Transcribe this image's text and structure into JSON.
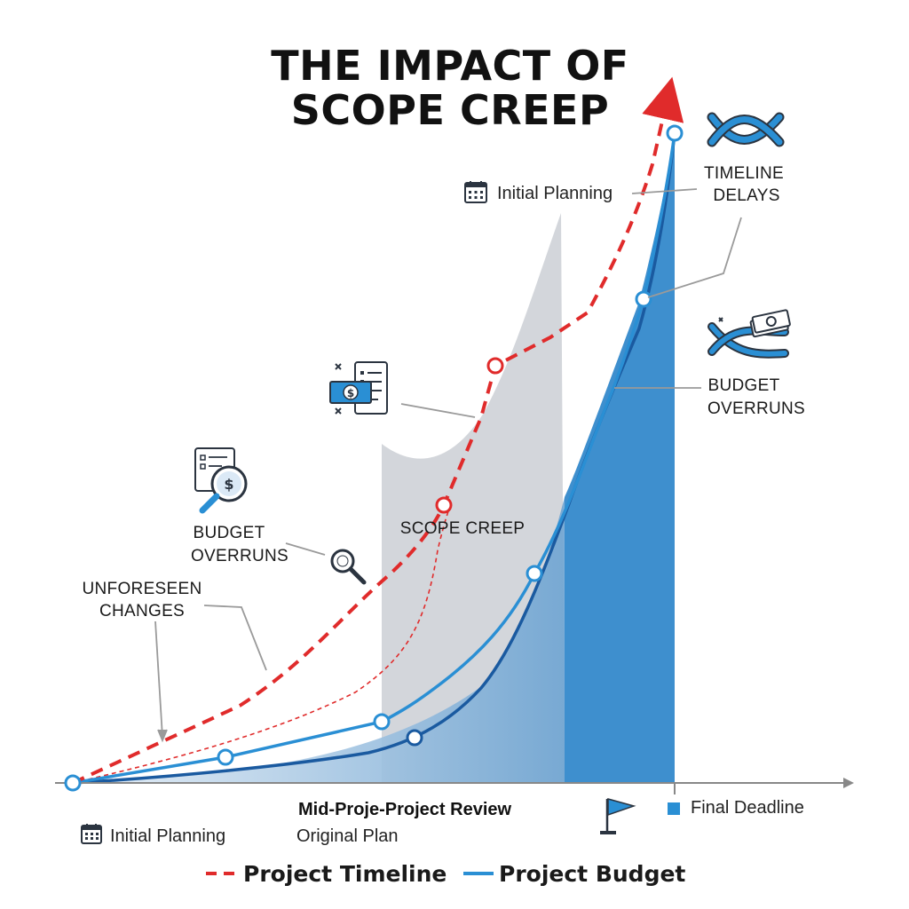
{
  "colors": {
    "timeline": "#e02b2b",
    "budget_line": "#2a8fd4",
    "budget_dark": "#1a5aa0",
    "fill_blue": "#3e8fce",
    "fill_grey": "#cfd3d9",
    "axis": "#888888",
    "icon": "#2b3440",
    "icon_accent": "#2a8fd4"
  },
  "chart_data": {
    "type": "line",
    "title": "THE IMPACT OF SCOPE CREEP",
    "title_lines": [
      "THE IMPACT OF",
      "SCOPE CREEP"
    ],
    "xlabel": "",
    "ylabel": "",
    "xlim": [
      0,
      10
    ],
    "ylim": [
      0,
      10
    ],
    "grid": false,
    "legend_position": "bottom",
    "series": [
      {
        "name": "Project Timeline",
        "style": "dashed",
        "x": [
          0,
          1.4,
          2.8,
          4.3,
          5.2,
          6.6,
          7.8,
          8.5
        ],
        "y": [
          0,
          0.7,
          1.8,
          3.3,
          4.1,
          6.6,
          7.3,
          9.8
        ]
      },
      {
        "name": "Project Budget",
        "style": "solid",
        "x": [
          0,
          2.3,
          4.4,
          5.4,
          7.2,
          8.4,
          8.7
        ],
        "y": [
          0,
          0.45,
          0.95,
          1.5,
          3.3,
          7.5,
          9.9
        ]
      },
      {
        "name": "",
        "style": "solid-dark",
        "x": [
          0,
          2,
          4,
          6,
          7,
          8.1,
          8.6
        ],
        "y": [
          0,
          0.2,
          0.5,
          1.5,
          3,
          6.2,
          9.2
        ]
      },
      {
        "name": "",
        "style": "thin-dashed",
        "x": [
          0,
          2,
          3.8,
          5.2,
          5.9,
          6.6
        ],
        "y": [
          0,
          0.5,
          1.5,
          3.5,
          5.3,
          6.6
        ]
      }
    ],
    "markers": [
      {
        "series": "Project Timeline",
        "points": [
          [
            5.2,
            4.1
          ],
          [
            6.6,
            6.6
          ],
          [
            8.5,
            9.8
          ]
        ]
      },
      {
        "series": "Project Budget",
        "points": [
          [
            0,
            0
          ],
          [
            2.3,
            0.45
          ],
          [
            4.4,
            0.95
          ],
          [
            5.4,
            1.5
          ],
          [
            7.2,
            3.3
          ],
          [
            8.4,
            7.5
          ],
          [
            8.7,
            9.9
          ]
        ]
      }
    ],
    "scope_creep_region": {
      "x_start": 4.5,
      "x_end": 7.7
    },
    "budget_fill_region": {
      "x_start": 7.7,
      "x_end": 8.7
    },
    "annotations": [
      {
        "id": "unforeseen",
        "lines": [
          "UNFORESEEN",
          "CHANGES"
        ]
      },
      {
        "id": "budget_overruns_left",
        "lines": [
          "BUDGET",
          "OVERRUNS"
        ]
      },
      {
        "id": "scope_creep",
        "lines": [
          "SCOPE CREEP"
        ]
      },
      {
        "id": "initial_planning_top",
        "lines": [
          "Initial Planning"
        ]
      },
      {
        "id": "timeline_delays",
        "lines": [
          "TIMELINE",
          "DELAYS"
        ]
      },
      {
        "id": "budget_overruns_right",
        "lines": [
          "BUDGET",
          "OVERRUNS"
        ]
      }
    ],
    "x_axis_labels": {
      "mid_project_review": "Mid-Proje-Project Review",
      "original_plan": "Original Plan",
      "initial_planning": "Initial Planning",
      "final_deadline": "Final Deadline"
    },
    "legend": [
      {
        "label": "Project Timeline",
        "style": "dashed"
      },
      {
        "label": "Project Budget",
        "style": "solid"
      }
    ]
  }
}
